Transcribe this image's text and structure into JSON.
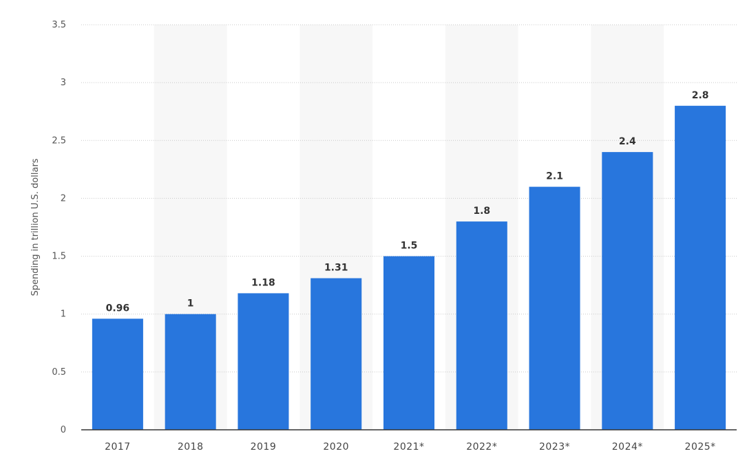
{
  "chart_data": {
    "type": "bar",
    "categories": [
      "2017",
      "2018",
      "2019",
      "2020",
      "2021*",
      "2022*",
      "2023*",
      "2024*",
      "2025*"
    ],
    "values": [
      0.96,
      1,
      1.18,
      1.31,
      1.5,
      1.8,
      2.1,
      2.4,
      2.8
    ],
    "value_labels": [
      "0.96",
      "1",
      "1.18",
      "1.31",
      "1.5",
      "1.8",
      "2.1",
      "2.4",
      "2.8"
    ],
    "title": "",
    "xlabel": "",
    "ylabel": "Spending in trillion U.S. dollars",
    "ylim": [
      0,
      3.5
    ],
    "yticks": [
      0,
      0.5,
      1,
      1.5,
      2,
      2.5,
      3,
      3.5
    ],
    "ytick_labels": [
      "0",
      "0.5",
      "1",
      "1.5",
      "2",
      "2.5",
      "3",
      "3.5"
    ],
    "grid": true,
    "legend": "none",
    "colors": {
      "bar": "#2876dd",
      "band": "#f7f7f7",
      "grid": "#c8c8c8",
      "axis": "#333333"
    }
  }
}
